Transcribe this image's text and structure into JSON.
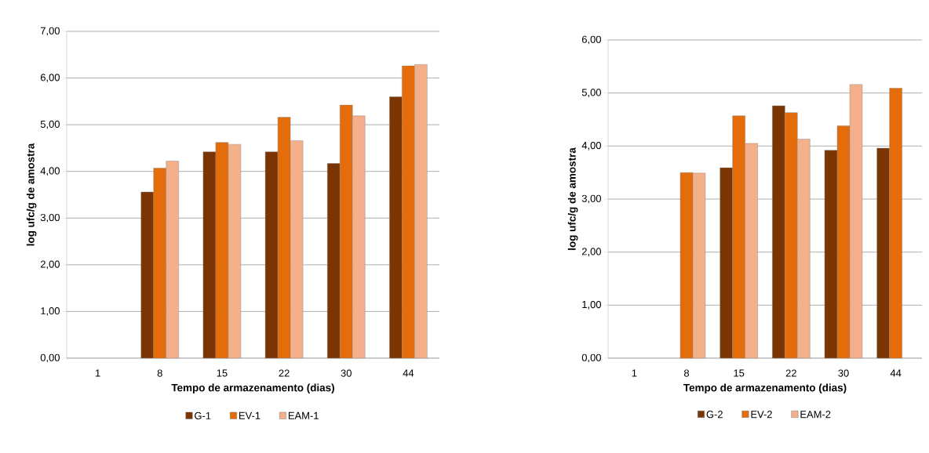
{
  "chart_data": [
    {
      "type": "bar",
      "xlabel": "Tempo de armazenamento (dias)",
      "ylabel": "log ufc/g de amostra",
      "categories": [
        "1",
        "8",
        "15",
        "22",
        "30",
        "44"
      ],
      "series": [
        {
          "name": "G-1",
          "color": "#7a3503",
          "values": [
            null,
            3.56,
            4.42,
            4.42,
            4.17,
            5.6
          ]
        },
        {
          "name": "EV-1",
          "color": "#e46c0a",
          "values": [
            null,
            4.07,
            4.62,
            5.16,
            5.42,
            6.26
          ]
        },
        {
          "name": "EAM-1",
          "color": "#f4b08a",
          "values": [
            null,
            4.22,
            4.58,
            4.66,
            5.19,
            6.29
          ]
        }
      ],
      "ylim": [
        0,
        7
      ],
      "yticks": [
        {
          "value": 0,
          "label": "0,00"
        },
        {
          "value": 1,
          "label": "1,00"
        },
        {
          "value": 2,
          "label": "2,00"
        },
        {
          "value": 3,
          "label": "3,00"
        },
        {
          "value": 4,
          "label": "4,00"
        },
        {
          "value": 5,
          "label": "5,00"
        },
        {
          "value": 6,
          "label": "6,00"
        },
        {
          "value": 7,
          "label": "7,00"
        }
      ],
      "grid": "y",
      "legend": "bottom"
    },
    {
      "type": "bar",
      "xlabel": "Tempo de armazenamento (dias)",
      "ylabel": "log ufc/g de amostra",
      "categories": [
        "1",
        "8",
        "15",
        "22",
        "30",
        "44"
      ],
      "series": [
        {
          "name": "G-2",
          "color": "#7a3503",
          "values": [
            null,
            null,
            3.59,
            4.76,
            3.92,
            3.96
          ]
        },
        {
          "name": "EV-2",
          "color": "#e46c0a",
          "values": [
            null,
            3.5,
            4.57,
            4.63,
            4.38,
            5.09
          ]
        },
        {
          "name": "EAM-2",
          "color": "#f4b08a",
          "values": [
            null,
            3.49,
            4.05,
            4.13,
            5.16,
            null
          ]
        }
      ],
      "ylim": [
        0,
        6
      ],
      "yticks": [
        {
          "value": 0,
          "label": "0,00"
        },
        {
          "value": 1,
          "label": "1,00"
        },
        {
          "value": 2,
          "label": "2,00"
        },
        {
          "value": 3,
          "label": "3,00"
        },
        {
          "value": 4,
          "label": "4,00"
        },
        {
          "value": 5,
          "label": "5,00"
        },
        {
          "value": 6,
          "label": "6,00"
        }
      ],
      "grid": "y",
      "legend": "bottom"
    }
  ]
}
